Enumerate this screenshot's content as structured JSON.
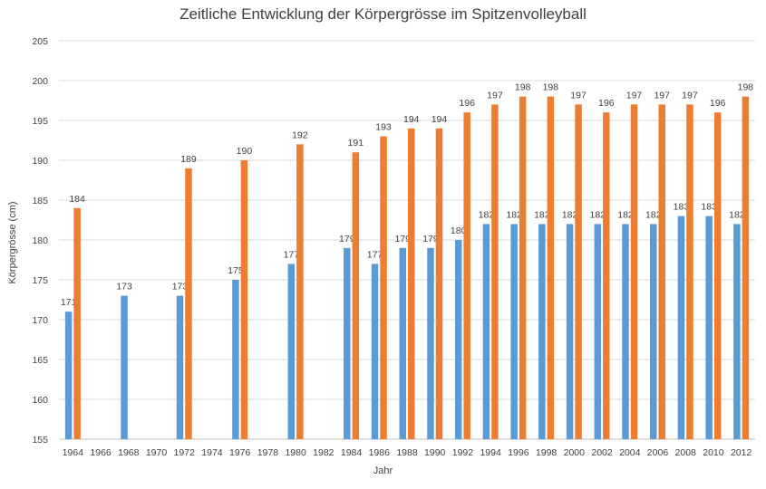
{
  "chart_data": {
    "type": "bar",
    "title": "Zeitliche Entwicklung der Körpergrösse im Spitzenvolleyball",
    "xlabel": "Jahr",
    "ylabel": "Körpergrösse (cm)",
    "ylim": [
      155,
      205
    ],
    "yticks": [
      155,
      160,
      165,
      170,
      175,
      180,
      185,
      190,
      195,
      200,
      205
    ],
    "grid": true,
    "legend": "none",
    "categories": [
      "1964",
      "1966",
      "1968",
      "1970",
      "1972",
      "1974",
      "1976",
      "1978",
      "1980",
      "1982",
      "1984",
      "1986",
      "1988",
      "1990",
      "1992",
      "1994",
      "1996",
      "1998",
      "2000",
      "2002",
      "2004",
      "2006",
      "2008",
      "2010",
      "2012"
    ],
    "series": [
      {
        "color": "#5B9BD5",
        "values": [
          171,
          null,
          173,
          null,
          173,
          null,
          175,
          null,
          177,
          null,
          179,
          177,
          179,
          179,
          180,
          182,
          182,
          182,
          182,
          182,
          182,
          182,
          183,
          183,
          182
        ]
      },
      {
        "color": "#ED7D31",
        "values": [
          184,
          null,
          null,
          null,
          189,
          null,
          190,
          null,
          192,
          null,
          191,
          193,
          194,
          194,
          196,
          197,
          198,
          198,
          197,
          196,
          197,
          197,
          197,
          196,
          198
        ]
      }
    ]
  }
}
